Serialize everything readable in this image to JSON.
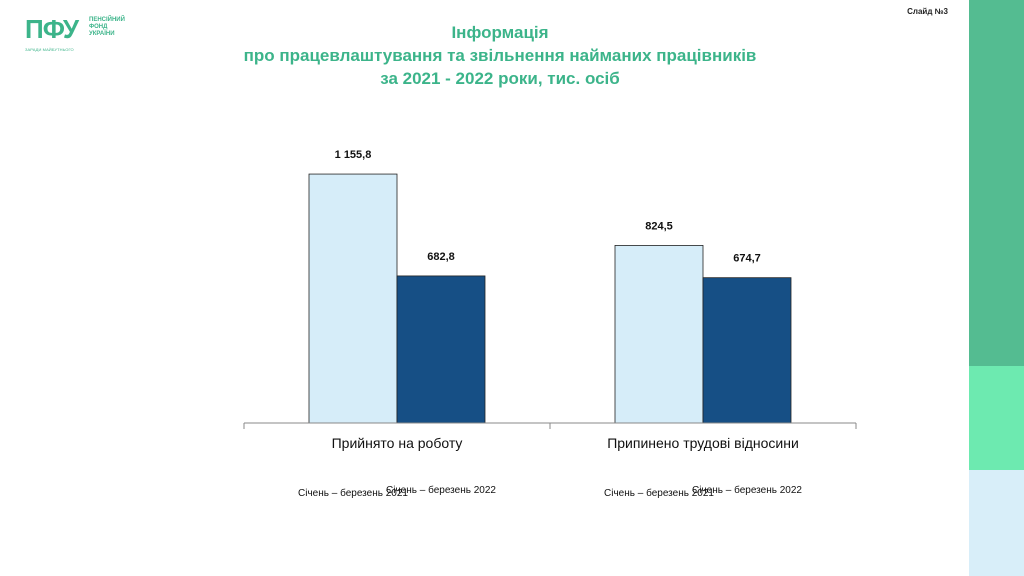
{
  "logo": {
    "mark": "ПФУ",
    "lines": [
      "ПЕНСІЙНИЙ",
      "ФОНД",
      "УКРАЇНИ"
    ],
    "tagline": "ЗАРАДИ МАЙБУТНЬОГО"
  },
  "slide_label": "Слайд №3",
  "title": {
    "line1": "Інформація",
    "line2": "про працевлаштування та звільнення найманих працівників",
    "line3": "за 2021 - 2022  роки,  тис. осіб"
  },
  "colors": {
    "accent": "#3cb48a",
    "series_2021": "#d6edf9",
    "series_2022": "#164f85"
  },
  "chart_data": {
    "type": "bar",
    "title": "Інформація про працевлаштування та звільнення найманих працівників за 2021 - 2022  роки,  тис. осіб",
    "categories": [
      "Прийнято на роботу",
      "Припинено трудові відносини"
    ],
    "series": [
      {
        "name": "Січень – березень 2021",
        "values": [
          1155.8,
          824.5
        ],
        "labels": [
          "1 155,8",
          "824,5"
        ],
        "color": "#d6edf9"
      },
      {
        "name": "Січень – березень 2022",
        "values": [
          682.8,
          674.7
        ],
        "labels": [
          "682,8",
          "674,7"
        ],
        "color": "#164f85"
      }
    ],
    "ylim": [
      0,
      1300
    ],
    "grid": false,
    "legend": "below each category"
  }
}
